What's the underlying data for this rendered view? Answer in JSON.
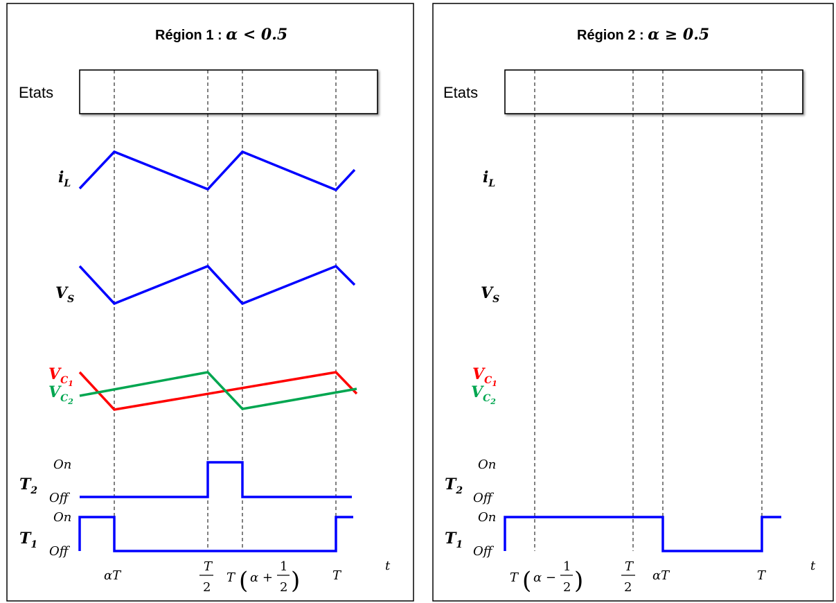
{
  "colors": {
    "i_L": "#0000ff",
    "V_S": "#0000ff",
    "V_C1": "#ff0000",
    "V_C2": "#00a650",
    "T2": "#0000ff",
    "T1": "#0000ff"
  },
  "panels": [
    {
      "title_text": "Région 1 : ",
      "title_math": "α < 0.5",
      "etats_label": "Etats",
      "labels": {
        "iL_main": "i",
        "iL_sub": "L",
        "VS_main": "V",
        "VS_sub": "S",
        "VC1_main": "V",
        "VC1_sub": "C",
        "VC1_subsub": "1",
        "VC2_main": "V",
        "VC2_sub": "C",
        "VC2_subsub": "2",
        "T2_main": "T",
        "T2_sub": "2",
        "T1_main": "T",
        "T1_sub": "1",
        "on": "On",
        "off": "Off"
      },
      "ticks": {
        "alphaT": "αT",
        "T_over_2_num": "T",
        "T_over_2_den": "2",
        "T_expr_T": "T",
        "T_expr_inner": "α +",
        "T_expr_num": "1",
        "T_expr_den": "2",
        "T": "T",
        "t": "t"
      },
      "signals": {
        "T2_on_interval": [
          0.5,
          0.75
        ],
        "T1_on_intervals": [
          [
            0,
            0.25
          ],
          [
            1.0,
            1.1
          ]
        ]
      }
    },
    {
      "title_text": "Région 2 : ",
      "title_math": "α ≥ 0.5",
      "etats_label": "Etats",
      "labels": {
        "iL_main": "i",
        "iL_sub": "L",
        "VS_main": "V",
        "VS_sub": "S",
        "VC1_main": "V",
        "VC1_sub": "C",
        "VC1_subsub": "1",
        "VC2_main": "V",
        "VC2_sub": "C",
        "VC2_subsub": "2",
        "T2_main": "T",
        "T2_sub": "2",
        "T1_main": "T",
        "T1_sub": "1",
        "on": "On",
        "off": "Off"
      },
      "ticks": {
        "T_expr_T": "T",
        "T_expr_inner": "α −",
        "T_expr_num": "1",
        "T_expr_den": "2",
        "T_over_2_num": "T",
        "T_over_2_den": "2",
        "alphaT": "αT",
        "T": "T",
        "t": "t"
      },
      "signals": {
        "T1_on_intervals": [
          [
            0,
            0.75
          ],
          [
            1.0,
            1.1
          ]
        ]
      }
    }
  ]
}
